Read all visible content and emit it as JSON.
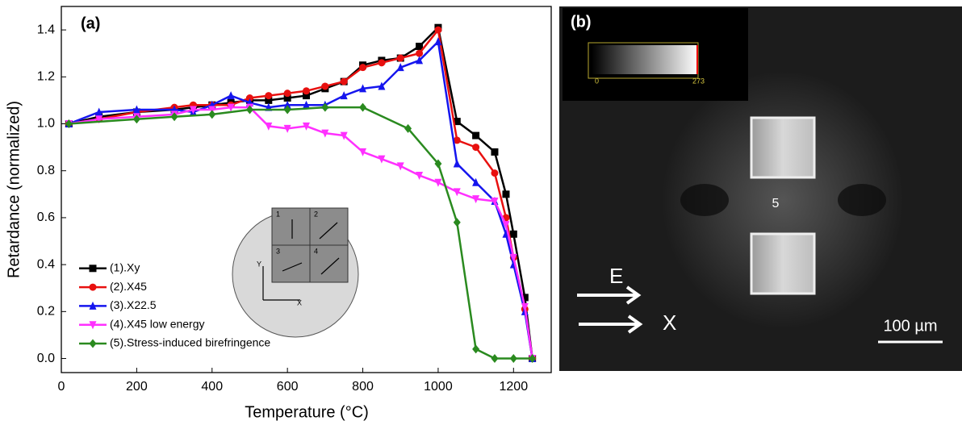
{
  "chart_data": {
    "type": "line",
    "title": "(a)",
    "x_label": "Temperature (°C)",
    "y_label": "Retardance (normalized)",
    "xlim": [
      0,
      1300
    ],
    "ylim": [
      -0.06,
      1.5
    ],
    "xticks": [
      0,
      200,
      400,
      600,
      800,
      1000,
      1200
    ],
    "yticks": [
      {
        "value": 0,
        "label": "0.0"
      },
      {
        "value": 0.2,
        "label": "0.2"
      },
      {
        "value": 0.4,
        "label": "0.4"
      },
      {
        "value": 0.6,
        "label": "0.6"
      },
      {
        "value": 0.8,
        "label": "0.8"
      },
      {
        "value": 1,
        "label": "1.0"
      },
      {
        "value": 1.2,
        "label": "1.2"
      },
      {
        "value": 1.4,
        "label": "1.4"
      }
    ],
    "grid": false,
    "legend": "lower left",
    "series": [
      {
        "name": "(1).Xy",
        "color": "#000000",
        "marker": "square",
        "x": [
          20,
          100,
          200,
          300,
          350,
          400,
          450,
          500,
          550,
          600,
          650,
          700,
          750,
          800,
          850,
          900,
          950,
          1000,
          1050,
          1100,
          1150,
          1180,
          1200,
          1230,
          1250
        ],
        "values": [
          1.0,
          1.03,
          1.05,
          1.06,
          1.07,
          1.08,
          1.09,
          1.1,
          1.1,
          1.11,
          1.12,
          1.15,
          1.18,
          1.25,
          1.27,
          1.28,
          1.33,
          1.41,
          1.01,
          0.95,
          0.88,
          0.7,
          0.53,
          0.26,
          0.0
        ]
      },
      {
        "name": "(2).X45",
        "color": "#e8100f",
        "marker": "circle",
        "x": [
          20,
          100,
          200,
          300,
          350,
          400,
          450,
          500,
          550,
          600,
          650,
          700,
          750,
          800,
          850,
          900,
          950,
          1000,
          1050,
          1100,
          1150,
          1180,
          1200,
          1230,
          1250
        ],
        "values": [
          1.0,
          1.02,
          1.05,
          1.07,
          1.08,
          1.08,
          1.08,
          1.11,
          1.12,
          1.13,
          1.14,
          1.16,
          1.18,
          1.24,
          1.26,
          1.28,
          1.3,
          1.4,
          0.93,
          0.9,
          0.79,
          0.6,
          0.43,
          0.21,
          0.0
        ]
      },
      {
        "name": "(3).X22.5",
        "color": "#1515ee",
        "marker": "triangle-up",
        "x": [
          20,
          100,
          200,
          300,
          350,
          400,
          450,
          500,
          550,
          600,
          650,
          700,
          750,
          800,
          850,
          900,
          950,
          1000,
          1050,
          1100,
          1150,
          1180,
          1200,
          1230,
          1250
        ],
        "values": [
          1.0,
          1.05,
          1.06,
          1.06,
          1.05,
          1.08,
          1.12,
          1.09,
          1.07,
          1.08,
          1.08,
          1.08,
          1.12,
          1.15,
          1.16,
          1.24,
          1.27,
          1.35,
          0.83,
          0.75,
          0.67,
          0.53,
          0.4,
          0.2,
          0.0
        ]
      },
      {
        "name": "(4).X45 low energy",
        "color": "#ff30ff",
        "marker": "triangle-down",
        "x": [
          20,
          100,
          200,
          300,
          350,
          400,
          450,
          500,
          550,
          600,
          650,
          700,
          750,
          800,
          850,
          900,
          950,
          1000,
          1050,
          1100,
          1150,
          1180,
          1200,
          1230,
          1250
        ],
        "values": [
          1.0,
          1.02,
          1.03,
          1.04,
          1.06,
          1.06,
          1.07,
          1.07,
          0.99,
          0.98,
          0.99,
          0.96,
          0.95,
          0.88,
          0.85,
          0.82,
          0.78,
          0.75,
          0.71,
          0.68,
          0.67,
          0.57,
          0.43,
          0.22,
          0.0
        ]
      },
      {
        "name": "(5).Stress-induced birefringence",
        "color": "#2a8a1f",
        "marker": "diamond",
        "x": [
          20,
          200,
          300,
          400,
          500,
          600,
          700,
          800,
          920,
          1000,
          1050,
          1100,
          1150,
          1200,
          1250
        ],
        "values": [
          1.0,
          1.02,
          1.03,
          1.04,
          1.06,
          1.06,
          1.07,
          1.07,
          0.98,
          0.83,
          0.58,
          0.04,
          0.0,
          0.0,
          0.0
        ]
      }
    ],
    "inset": {
      "quadrants": [
        "1",
        "2",
        "3",
        "4"
      ],
      "y_axis": "Y",
      "x_axis": "X"
    }
  },
  "image_panel": {
    "label": "(b)",
    "colorbar_min": "0",
    "colorbar_max": "273",
    "spot_label": "5",
    "field_label": "E",
    "axis_label": "X",
    "scale_bar": "100 µm"
  }
}
